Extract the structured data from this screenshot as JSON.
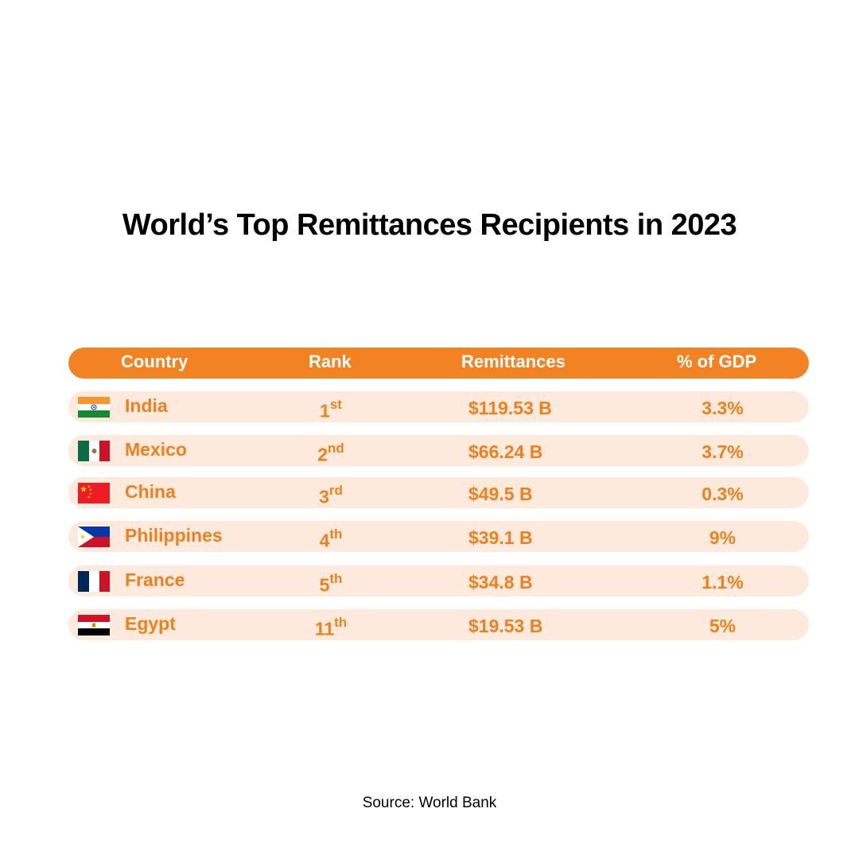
{
  "chart_data": {
    "type": "table",
    "title": "World’s Top Remittances Recipients in 2023",
    "columns": [
      "Country",
      "Rank",
      "Remittances",
      "% of GDP"
    ],
    "rows": [
      {
        "country": "India",
        "flag": "india-flag",
        "rank_num": "1",
        "rank_suffix": "st",
        "remittances": "$119.53 B",
        "gdp": "3.3%"
      },
      {
        "country": "Mexico",
        "flag": "mexico-flag",
        "rank_num": "2",
        "rank_suffix": "nd",
        "remittances": "$66.24 B",
        "gdp": "3.7%"
      },
      {
        "country": "China",
        "flag": "china-flag",
        "rank_num": "3",
        "rank_suffix": "rd",
        "remittances": "$49.5 B",
        "gdp": "0.3%"
      },
      {
        "country": "Philippines",
        "flag": "philippines-flag",
        "rank_num": "4",
        "rank_suffix": "th",
        "remittances": "$39.1 B",
        "gdp": "9%"
      },
      {
        "country": "France",
        "flag": "france-flag",
        "rank_num": "5",
        "rank_suffix": "th",
        "remittances": "$34.8 B",
        "gdp": "1.1%"
      },
      {
        "country": "Egypt",
        "flag": "egypt-flag",
        "rank_num": "11",
        "rank_suffix": "th",
        "remittances": "$19.53 B",
        "gdp": "5%"
      }
    ],
    "source": "Source: World Bank"
  },
  "colors": {
    "accent": "#f38322",
    "row_bg": "#fdeadd",
    "row_text": "#f0801e"
  }
}
